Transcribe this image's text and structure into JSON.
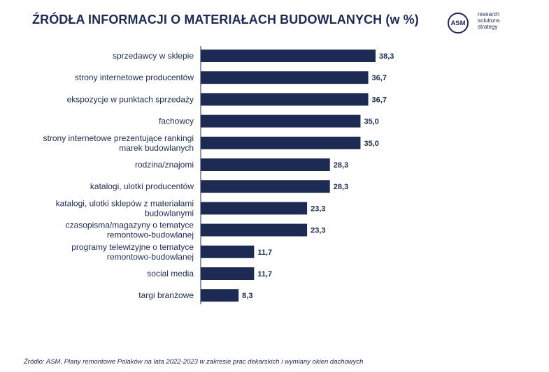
{
  "header": {
    "title": "ŹRÓDŁA INFORMACJI O MATERIAŁACH BUDOWLANYCH (w %)"
  },
  "logo": {
    "mark": "ASM",
    "lines": [
      "research",
      "solutions",
      "strategy"
    ]
  },
  "footer": {
    "source": "Źródło: ASM, Plany remontowe Polaków na lata 2022-2023 w zakresie prac dekarskich i wymiany okien dachowych"
  },
  "colors": {
    "bar": "#1d2b52",
    "text": "#1d2b52"
  },
  "chart_data": {
    "type": "bar",
    "orientation": "horizontal",
    "title": "ŹRÓDŁA INFORMACJI O MATERIAŁACH BUDOWLANYCH (w %)",
    "categories": [
      [
        "sprzedawcy w sklepie"
      ],
      [
        "strony internetowe producentów"
      ],
      [
        "ekspozycje w punktach sprzedaży"
      ],
      [
        "fachowcy"
      ],
      [
        "strony internetowe prezentujące rankingi",
        "marek budowlanych"
      ],
      [
        "rodzina/znajomi"
      ],
      [
        "katalogi, ulotki producentów"
      ],
      [
        "katalogi, ulotki sklepów z materiałami",
        "budowlanymi"
      ],
      [
        "czasopisma/magazyny o tematyce",
        "remontowo-budowlanej"
      ],
      [
        "programy telewizyjne o tematyce",
        "remontowo-budowlanej"
      ],
      [
        "social media"
      ],
      [
        "targi branżowe"
      ]
    ],
    "values": [
      38.3,
      36.7,
      36.7,
      35.0,
      35.0,
      28.3,
      28.3,
      23.3,
      23.3,
      11.7,
      11.7,
      8.3
    ],
    "value_labels": [
      "38,3",
      "36,7",
      "36,7",
      "35,0",
      "35,0",
      "28,3",
      "28,3",
      "23,3",
      "23,3",
      "11,7",
      "11,7",
      "8,3"
    ],
    "xlim": [
      0,
      40
    ],
    "grid": false,
    "legend": "none"
  }
}
